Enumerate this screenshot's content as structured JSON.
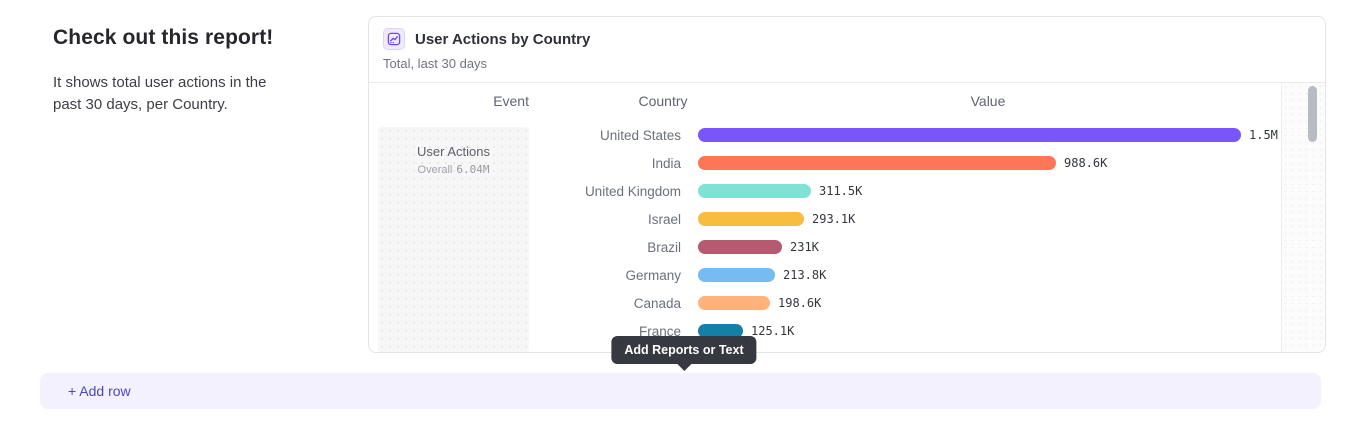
{
  "intro": {
    "title": "Check out this report!",
    "body": "It shows total user actions in the past 30 days, per Country."
  },
  "card": {
    "icon": "line-chart-icon",
    "title": "User Actions by Country",
    "subtitle": "Total, last 30 days",
    "accent": "#7856ff"
  },
  "chart_data": {
    "type": "bar",
    "orientation": "horizontal",
    "title": "User Actions by Country",
    "subtitle": "Total, last 30 days",
    "columns": [
      "Event",
      "Country",
      "Value"
    ],
    "event": {
      "name": "User Actions",
      "overall_label": "Overall",
      "overall_value": "6.04M"
    },
    "categories": [
      "United States",
      "India",
      "United Kingdom",
      "Israel",
      "Brazil",
      "Germany",
      "Canada",
      "France"
    ],
    "values": [
      1500000,
      988600,
      311500,
      293100,
      231000,
      213800,
      198600,
      125100
    ],
    "value_labels": [
      "1.5M",
      "988.6K",
      "311.5K",
      "293.1K",
      "231K",
      "213.8K",
      "198.6K",
      "125.1K"
    ],
    "colors": [
      "#7856fa",
      "#ff7557",
      "#80e1d5",
      "#f7bd3f",
      "#b55a71",
      "#76bbf2",
      "#ffb27c",
      "#1580a5"
    ],
    "xlim": [
      0,
      1500000
    ],
    "grid": false,
    "legend": "none"
  },
  "tooltip": {
    "label": "Add Reports or Text"
  },
  "add_row": {
    "label": "+ Add row"
  }
}
